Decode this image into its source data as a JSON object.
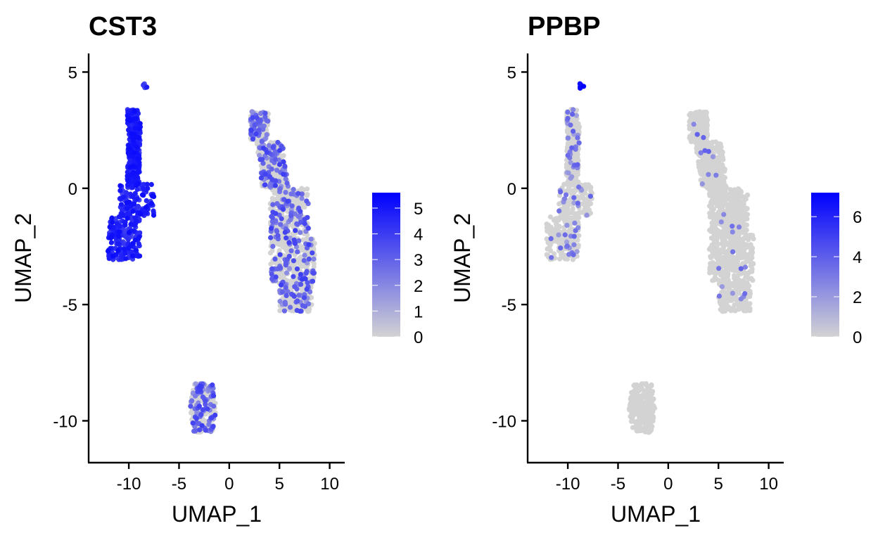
{
  "chart_data": [
    {
      "type": "scatter",
      "title": "CST3",
      "xlabel": "UMAP_1",
      "ylabel": "UMAP_2",
      "xlim": [
        -14,
        11.5
      ],
      "ylim": [
        -11.8,
        5.8
      ],
      "xticks": [
        -10,
        -5,
        0,
        5,
        10
      ],
      "yticks": [
        5,
        0,
        -5,
        -10
      ],
      "grid": false,
      "legend": {
        "placement": "right",
        "type": "colorbar",
        "min": 0,
        "max": 5.6,
        "ticks": [
          0,
          1,
          2,
          3,
          4,
          5
        ],
        "low_color": "#d3d3d3",
        "high_color": "#0000ff"
      },
      "clusters": [
        {
          "name": "upper-left",
          "x_range": [
            -12.5,
            -7
          ],
          "y_range": [
            -3.1,
            3.4
          ],
          "expression_mean": 4.5
        },
        {
          "name": "right",
          "x_range": [
            1.5,
            9.2
          ],
          "y_range": [
            -5.3,
            3.3
          ],
          "expression_mean": 0.6
        },
        {
          "name": "bottom",
          "x_range": [
            -4,
            -1
          ],
          "y_range": [
            -10.5,
            -8.4
          ],
          "expression_mean": 0.8
        },
        {
          "name": "tip",
          "x_range": [
            -8.6,
            -8.2
          ],
          "y_range": [
            4.3,
            4.5
          ],
          "expression_mean": 4.2
        }
      ]
    },
    {
      "type": "scatter",
      "title": "PPBP",
      "xlabel": "UMAP_1",
      "ylabel": "UMAP_2",
      "xlim": [
        -14,
        11.5
      ],
      "ylim": [
        -11.8,
        5.8
      ],
      "xticks": [
        -10,
        -5,
        0,
        5,
        10
      ],
      "yticks": [
        5,
        0,
        -5,
        -10
      ],
      "grid": false,
      "legend": {
        "placement": "right",
        "type": "colorbar",
        "min": 0,
        "max": 7.2,
        "ticks": [
          0,
          2,
          4,
          6
        ],
        "low_color": "#d3d3d3",
        "high_color": "#0000ff"
      },
      "clusters": [
        {
          "name": "upper-left",
          "x_range": [
            -12.5,
            -7.5
          ],
          "y_range": [
            -3.1,
            3.4
          ],
          "expression_mean": 0.3
        },
        {
          "name": "right",
          "x_range": [
            1.5,
            9.2
          ],
          "y_range": [
            -5.3,
            3.3
          ],
          "expression_mean": 0.05
        },
        {
          "name": "bottom",
          "x_range": [
            -4,
            -1
          ],
          "y_range": [
            -10.5,
            -8.4
          ],
          "expression_mean": 0.0
        },
        {
          "name": "tip",
          "x_range": [
            -8.8,
            -8.4
          ],
          "y_range": [
            4.3,
            4.5
          ],
          "expression_mean": 6.8
        }
      ]
    }
  ]
}
